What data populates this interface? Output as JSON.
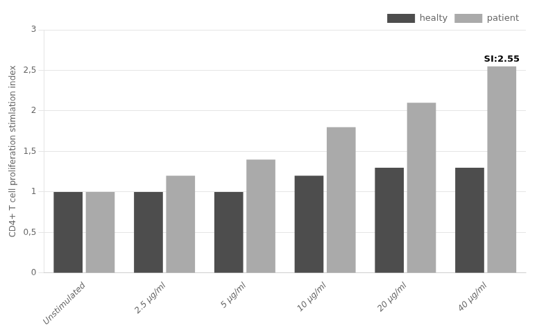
{
  "chart_data": {
    "type": "bar",
    "categories": [
      "Unstimulated",
      "2.5 μg/ml",
      "5 μg/ml",
      "10 μg/ml",
      "20 μg/ml",
      "40 μg/ml"
    ],
    "series": [
      {
        "name": "healty",
        "color": "#4d4d4d",
        "values": [
          1.0,
          1.0,
          1.0,
          1.2,
          1.3,
          1.3
        ]
      },
      {
        "name": "patient",
        "color": "#aaaaaa",
        "values": [
          1.0,
          1.2,
          1.4,
          1.8,
          2.1,
          2.55
        ]
      }
    ],
    "ylabel": "CD4+ T cell proliferation stimlation index",
    "ylim": [
      0,
      3
    ],
    "yticks": [
      0,
      {
        "value": 0.5,
        "label": "0,5"
      },
      1,
      {
        "value": 1.5,
        "label": "1,5"
      },
      2,
      {
        "value": 2.5,
        "label": "2,5"
      },
      3
    ],
    "annotations": [
      {
        "text": "SI:2.55",
        "category": "40 μg/ml",
        "series": "patient"
      }
    ],
    "legend": "upper right",
    "grid": true
  }
}
